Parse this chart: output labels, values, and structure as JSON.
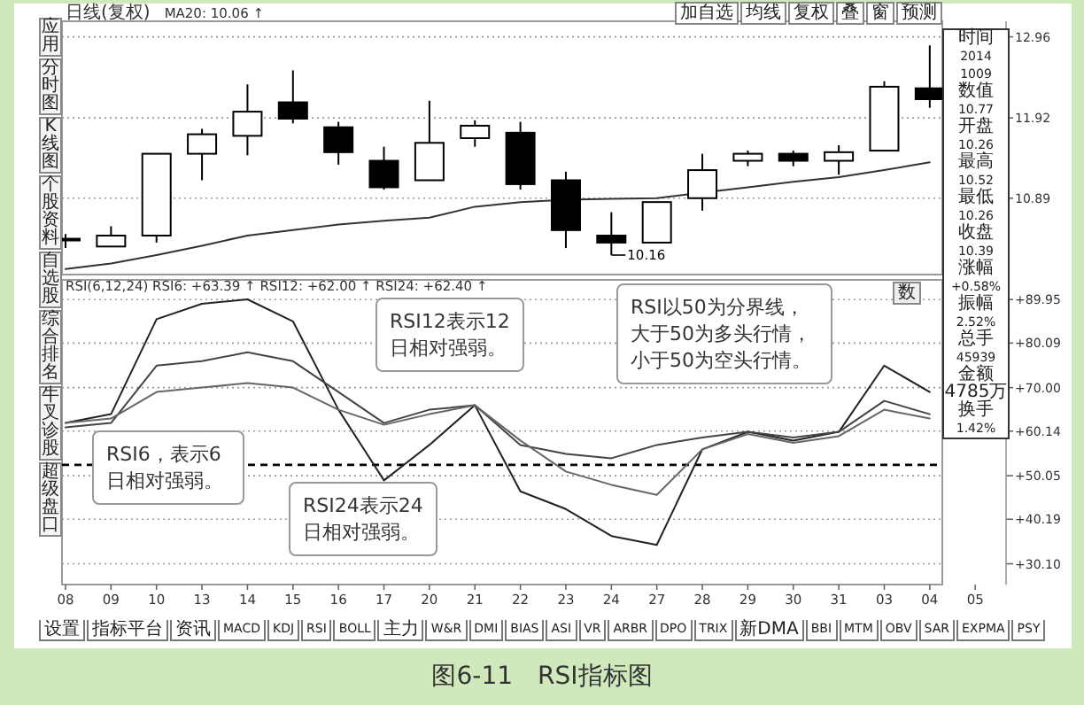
{
  "chart_data": [
    {
      "type": "candlestick",
      "categories": [
        "08",
        "09",
        "10",
        "13",
        "14",
        "15",
        "16",
        "17",
        "20",
        "21",
        "22",
        "23",
        "24",
        "27",
        "28",
        "29",
        "30",
        "31",
        "03",
        "04",
        "05"
      ],
      "ohlc": [
        [
          10.37,
          10.43,
          10.25,
          10.37
        ],
        [
          10.27,
          10.53,
          10.27,
          10.41
        ],
        [
          10.41,
          11.46,
          10.32,
          11.46
        ],
        [
          11.46,
          11.78,
          11.12,
          11.71
        ],
        [
          11.69,
          12.35,
          11.44,
          12.0
        ],
        [
          12.12,
          12.53,
          11.85,
          11.91
        ],
        [
          11.8,
          11.87,
          11.32,
          11.48
        ],
        [
          11.37,
          11.55,
          11.0,
          11.03
        ],
        [
          11.12,
          12.14,
          11.12,
          11.6
        ],
        [
          11.66,
          11.89,
          11.55,
          11.82
        ],
        [
          11.73,
          11.87,
          11.0,
          11.07
        ],
        [
          11.12,
          11.23,
          10.25,
          10.48
        ],
        [
          10.41,
          10.71,
          10.16,
          10.32
        ],
        [
          10.32,
          10.84,
          10.32,
          10.84
        ],
        [
          10.89,
          11.46,
          10.73,
          11.25
        ],
        [
          11.37,
          11.5,
          11.3,
          11.46
        ],
        [
          11.46,
          11.5,
          11.3,
          11.37
        ],
        [
          11.37,
          11.57,
          11.19,
          11.48
        ],
        [
          11.5,
          12.39,
          11.5,
          12.32
        ],
        [
          12.3,
          12.85,
          12.05,
          12.16
        ],
        null
      ],
      "series": [
        {
          "type": "line",
          "color": "#333333",
          "values": [
            9.98,
            10.05,
            10.16,
            10.28,
            10.41,
            10.48,
            10.55,
            10.6,
            10.64,
            10.78,
            10.84,
            10.87,
            10.88,
            10.89,
            10.96,
            11.03,
            11.1,
            11.16,
            11.25,
            11.35,
            null
          ]
        }
      ],
      "ylim": [
        9.91,
        13.16
      ],
      "yticks": [
        12.96,
        11.92,
        10.89
      ],
      "grid": "y",
      "tick_labels": "y",
      "annotations": [
        "日线(复权)",
        "MA20: 10.06 ↑",
        {
          "text": "10.16",
          "x": "24",
          "y": 10.16
        }
      ]
    },
    {
      "type": "line",
      "categories": [
        "08",
        "09",
        "10",
        "13",
        "14",
        "15",
        "16",
        "17",
        "20",
        "21",
        "22",
        "23",
        "24",
        "27",
        "28",
        "29",
        "30",
        "31",
        "03",
        "04",
        "05"
      ],
      "series": [
        {
          "color": "#222222",
          "values": [
            62,
            64,
            85.5,
            89,
            90,
            85,
            65,
            49,
            57,
            66,
            46.5,
            42.5,
            36.4,
            34.4,
            56,
            60,
            58,
            60,
            75,
            69,
            null
          ]
        },
        {
          "color": "#444444",
          "values": [
            61,
            62,
            75,
            76,
            78,
            76,
            69,
            62,
            65,
            66,
            57,
            55,
            54,
            57,
            58.7,
            60,
            58.7,
            60,
            67,
            64,
            null
          ]
        },
        {
          "color": "#666666",
          "values": [
            62,
            63,
            69,
            70,
            71,
            70,
            65,
            61.6,
            64,
            66,
            58,
            51,
            48,
            45.7,
            56,
            59.5,
            57.5,
            59,
            65,
            63,
            null
          ]
        }
      ],
      "ylim": [
        25.4,
        94.4
      ],
      "yticks": [
        {
          "value": 89.95,
          "label": "+89.95"
        },
        {
          "value": 80.09,
          "label": "+80.09"
        },
        {
          "value": 70.0,
          "label": "+70.00"
        },
        {
          "value": 60.14,
          "label": "+60.14"
        },
        {
          "value": 50.05,
          "label": "+50.05"
        },
        {
          "value": 40.19,
          "label": "+40.19"
        },
        {
          "value": 30.1,
          "label": "+30.10"
        }
      ],
      "grid": "y",
      "ref_lines": [
        {
          "axis": "y",
          "value": 52.5,
          "color": "#000000",
          "line_style": "dashed"
        }
      ],
      "annotations": [
        "RSI(6,12,24) RSI6: +63.39 ↑ RSI12: +62.00 ↑ RSI24: +62.40 ↑",
        "RSI12表示12日相对强弱。",
        "RSI6，表示6日相对强弱。",
        "RSI24表示24日相对强弱。",
        "RSI以50为分界线，大于50为多头行情，小于50为空头行情。"
      ]
    },
    {
      "type": "other",
      "annotations": [
        "应用",
        "分时图",
        "K线图",
        "个股资料",
        "自选股",
        "综合排名",
        "牛叉诊股",
        "超级盘口"
      ]
    },
    {
      "type": "other",
      "annotations": [
        "加自选",
        "均线",
        "复权",
        "叠",
        "窗",
        "预测"
      ]
    },
    {
      "type": "other",
      "annotations": [
        "时间",
        "2014",
        "1009",
        "数值",
        "10.77",
        "开盘",
        "10.26",
        "最高",
        "10.52",
        "最低",
        "10.26",
        "收盘",
        "10.39",
        "涨幅",
        "+0.58%",
        "振幅",
        "2.52%",
        "总手",
        "45939",
        "金额",
        "4785万",
        "换手",
        "1.42%"
      ]
    },
    {
      "type": "other",
      "annotations": [
        "数"
      ]
    },
    {
      "type": "other",
      "annotations": [
        "设置",
        "指标平台",
        "资讯",
        "MACD",
        "KDJ",
        "RSI",
        "BOLL",
        "主力",
        "W&R",
        "DMI",
        "BIAS",
        "ASI",
        "VR",
        "ARBR",
        "DPO",
        "TRIX",
        "新DMA",
        "BBI",
        "MTM",
        "OBV",
        "SAR",
        "EXPMA",
        "PSY"
      ]
    },
    {
      "type": "other",
      "title": "图6-11　RSI指标图"
    }
  ]
}
